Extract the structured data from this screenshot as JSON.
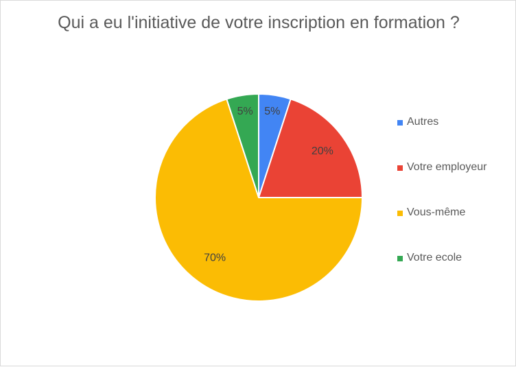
{
  "chart_data": {
    "type": "pie",
    "title": "Qui a eu l'initiative de votre inscription en formation ?",
    "categories": [
      "Autres",
      "Votre employeur",
      "Vous-même",
      "Votre ecole"
    ],
    "values": [
      5,
      20,
      70,
      5
    ],
    "labels": [
      "5%",
      "20%",
      "70%",
      "5%"
    ],
    "colors": [
      "#4285f4",
      "#ea4335",
      "#fbbc04",
      "#34a853"
    ],
    "legend": "right"
  }
}
